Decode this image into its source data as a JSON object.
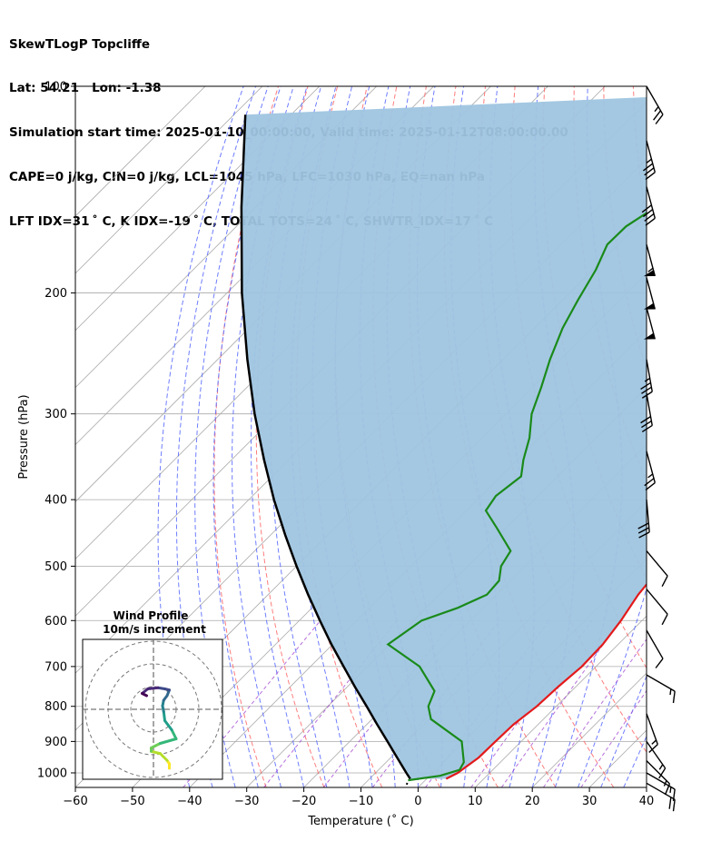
{
  "title_lines": [
    "SkewTLogP Topcliffe",
    "Lat: 54.21   Lon: -1.38",
    "Simulation start time: 2025-01-10_00:00:00, Valid time: 2025-01-12T08:00:00.00",
    "CAPE=0 j/kg, CIN=0 j/kg, LCL=1045 hPa, LFC=1030 hPa, EQ=nan hPa",
    "LFT IDX=31 ˚ C, K IDX=-19 ˚ C, TOTAL TOTS=24 ˚ C, SHWTR_IDX=17 ˚ C"
  ],
  "colors": {
    "temperature": "#e31a1c",
    "dewpoint": "#1a8a1a",
    "parcel": "#000000",
    "shade": "#9fc5e0",
    "dry_adiabat": "#ff6666",
    "moist_adiabat": "#5566ff",
    "mixing_ratio": "#9933cc",
    "isotherm": "#aaaaaa"
  },
  "chart_data": [
    {
      "type": "line",
      "kind": "skew-T log-P diagram",
      "xlabel": "Temperature (˚ C)",
      "ylabel": "Pressure (hPa)",
      "xlim": [
        -60,
        40
      ],
      "ylim": [
        1050,
        100
      ],
      "y_scale": "log",
      "xticks": [
        -60,
        -50,
        -40,
        -30,
        -20,
        -10,
        0,
        10,
        20,
        30,
        40
      ],
      "xtick_labels": [
        "−60",
        "−50",
        "−40",
        "−30",
        "−20",
        "−10",
        "0",
        "10",
        "20",
        "30",
        "40"
      ],
      "yticks": [
        1000,
        900,
        800,
        700,
        600,
        500,
        400,
        300,
        200,
        100
      ],
      "grid": true,
      "series": [
        {
          "role": "temperature",
          "points": [
            {
              "p": 1020,
              "t": 3.4
            },
            {
              "p": 1000,
              "t": 4.4
            },
            {
              "p": 950,
              "t": 5.4
            },
            {
              "p": 900,
              "t": 5.5
            },
            {
              "p": 850,
              "t": 5.7
            },
            {
              "p": 800,
              "t": 6.6
            },
            {
              "p": 750,
              "t": 6.9
            },
            {
              "p": 700,
              "t": 7.5
            },
            {
              "p": 650,
              "t": 7.3
            },
            {
              "p": 600,
              "t": 6.3
            },
            {
              "p": 550,
              "t": 4.8
            },
            {
              "p": 500,
              "t": 3.9
            },
            {
              "p": 470,
              "t": 3.3
            },
            {
              "p": 450,
              "t": 2.7
            },
            {
              "p": 430,
              "t": 1.4
            },
            {
              "p": 400,
              "t": -0.4
            },
            {
              "p": 370,
              "t": -2.5
            },
            {
              "p": 350,
              "t": -4.5
            },
            {
              "p": 325,
              "t": -6.8
            },
            {
              "p": 300,
              "t": -8.6
            },
            {
              "p": 275,
              "t": -9.9
            },
            {
              "p": 250,
              "t": -11.4
            },
            {
              "p": 225,
              "t": -13.9
            },
            {
              "p": 205,
              "t": -16.6
            },
            {
              "p": 195,
              "t": -18.5
            },
            {
              "p": 185,
              "t": -20.3
            },
            {
              "p": 175,
              "t": -22.5
            },
            {
              "p": 160,
              "t": -25.0
            },
            {
              "p": 150,
              "t": -28.8
            },
            {
              "p": 130,
              "t": -32.2
            },
            {
              "p": 115,
              "t": -35.3
            },
            {
              "p": 100,
              "t": -39.0
            }
          ]
        },
        {
          "role": "dewpoint",
          "points": [
            {
              "p": 1025,
              "t": -3.0
            },
            {
              "p": 1010,
              "t": 1.8
            },
            {
              "p": 990,
              "t": 4.2
            },
            {
              "p": 965,
              "t": 3.6
            },
            {
              "p": 900,
              "t": -0.4
            },
            {
              "p": 835,
              "t": -9.7
            },
            {
              "p": 800,
              "t": -12.4
            },
            {
              "p": 760,
              "t": -14.0
            },
            {
              "p": 700,
              "t": -20.9
            },
            {
              "p": 650,
              "t": -30.3
            },
            {
              "p": 600,
              "t": -28.6
            },
            {
              "p": 575,
              "t": -24.5
            },
            {
              "p": 550,
              "t": -21.7
            },
            {
              "p": 525,
              "t": -22.0
            },
            {
              "p": 500,
              "t": -24.2
            },
            {
              "p": 475,
              "t": -25.2
            },
            {
              "p": 440,
              "t": -31.6
            },
            {
              "p": 415,
              "t": -36.6
            },
            {
              "p": 395,
              "t": -37.4
            },
            {
              "p": 370,
              "t": -36.4
            },
            {
              "p": 350,
              "t": -38.9
            },
            {
              "p": 325,
              "t": -41.7
            },
            {
              "p": 300,
              "t": -45.5
            },
            {
              "p": 275,
              "t": -48.4
            },
            {
              "p": 250,
              "t": -51.8
            },
            {
              "p": 225,
              "t": -55.1
            },
            {
              "p": 205,
              "t": -57.3
            },
            {
              "p": 185,
              "t": -59.5
            },
            {
              "p": 170,
              "t": -61.9
            },
            {
              "p": 160,
              "t": -61.8
            },
            {
              "p": 150,
              "t": -60.0
            },
            {
              "p": 135,
              "t": -59.4
            },
            {
              "p": 125,
              "t": -62.9
            },
            {
              "p": 110,
              "t": -63.8
            },
            {
              "p": 100,
              "t": -64.6
            }
          ]
        },
        {
          "role": "parcel",
          "points": [
            {
              "p": 1020,
              "t": -2.9
            },
            {
              "p": 1000,
              "t": -4.6
            },
            {
              "p": 950,
              "t": -8.9
            },
            {
              "p": 900,
              "t": -13.4
            },
            {
              "p": 850,
              "t": -18.2
            },
            {
              "p": 800,
              "t": -23.2
            },
            {
              "p": 750,
              "t": -28.6
            },
            {
              "p": 700,
              "t": -34.2
            },
            {
              "p": 650,
              "t": -40.2
            },
            {
              "p": 600,
              "t": -46.4
            },
            {
              "p": 550,
              "t": -53.0
            },
            {
              "p": 500,
              "t": -60.0
            },
            {
              "p": 450,
              "t": -67.5
            },
            {
              "p": 400,
              "t": -75.6
            },
            {
              "p": 350,
              "t": -84.3
            },
            {
              "p": 300,
              "t": -94.0
            },
            {
              "p": 250,
              "t": -104.8
            },
            {
              "p": 200,
              "t": -117.4
            },
            {
              "p": 150,
              "t": -132.5
            },
            {
              "p": 110,
              "t": -148.0
            }
          ]
        }
      ],
      "wind_barbs": [
        {
          "p": 1035,
          "speed_kt": 20,
          "direction_deg": 300
        },
        {
          "p": 1000,
          "speed_kt": 15,
          "direction_deg": 300
        },
        {
          "p": 960,
          "speed_kt": 15,
          "direction_deg": 315
        },
        {
          "p": 900,
          "speed_kt": 15,
          "direction_deg": 325
        },
        {
          "p": 820,
          "speed_kt": 15,
          "direction_deg": 340
        },
        {
          "p": 720,
          "speed_kt": 15,
          "direction_deg": 300
        },
        {
          "p": 620,
          "speed_kt": 10,
          "direction_deg": 330
        },
        {
          "p": 540,
          "speed_kt": 10,
          "direction_deg": 320
        },
        {
          "p": 475,
          "speed_kt": 10,
          "direction_deg": 320
        },
        {
          "p": 400,
          "speed_kt": 30,
          "direction_deg": 355
        },
        {
          "p": 340,
          "speed_kt": 25,
          "direction_deg": 345
        },
        {
          "p": 280,
          "speed_kt": 30,
          "direction_deg": 350
        },
        {
          "p": 250,
          "speed_kt": 35,
          "direction_deg": 350
        },
        {
          "p": 210,
          "speed_kt": 50,
          "direction_deg": 345
        },
        {
          "p": 190,
          "speed_kt": 50,
          "direction_deg": 345
        },
        {
          "p": 170,
          "speed_kt": 55,
          "direction_deg": 345
        },
        {
          "p": 140,
          "speed_kt": 40,
          "direction_deg": 345
        },
        {
          "p": 120,
          "speed_kt": 35,
          "direction_deg": 345
        },
        {
          "p": 100,
          "speed_kt": 25,
          "direction_deg": 330
        }
      ]
    },
    {
      "type": "line",
      "kind": "hodograph",
      "title": "Wind Profile",
      "subtitle": "10m/s increment",
      "ring_increment_ms": 10,
      "rings": 3,
      "grid": true,
      "points": [
        {
          "u": 7.0,
          "v": -26.0
        },
        {
          "u": 7.0,
          "v": -24.0
        },
        {
          "u": 6.0,
          "v": -22.5
        },
        {
          "u": 3.0,
          "v": -19.5
        },
        {
          "u": -1.0,
          "v": -18.5
        },
        {
          "u": -1.0,
          "v": -17.0
        },
        {
          "u": 3.0,
          "v": -15.0
        },
        {
          "u": 10.0,
          "v": -13.0
        },
        {
          "u": 8.0,
          "v": -9.0
        },
        {
          "u": 5.0,
          "v": -5.0
        },
        {
          "u": 4.5,
          "v": -1.0
        },
        {
          "u": 4.0,
          "v": 1.5
        },
        {
          "u": 4.5,
          "v": 4.0
        },
        {
          "u": 6.0,
          "v": 6.0
        },
        {
          "u": 7.0,
          "v": 8.5
        },
        {
          "u": 5.0,
          "v": 9.0
        },
        {
          "u": 2.0,
          "v": 9.5
        },
        {
          "u": -2.5,
          "v": 9.0
        },
        {
          "u": -5.0,
          "v": 7.0
        },
        {
          "u": -3.0,
          "v": 6.0
        }
      ]
    }
  ]
}
